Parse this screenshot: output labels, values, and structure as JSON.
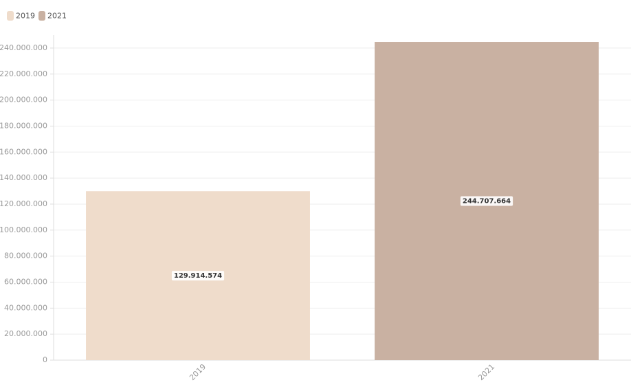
{
  "chart_data": {
    "type": "bar",
    "categories": [
      "2019",
      "2021"
    ],
    "series": [
      {
        "name": "2019",
        "color": "#efdccb",
        "values": [
          129914574,
          null
        ],
        "value_labels": [
          "129.914.574",
          null
        ]
      },
      {
        "name": "2021",
        "color": "#c9b1a2",
        "values": [
          null,
          244707664
        ],
        "value_labels": [
          null,
          "244.707.664"
        ]
      }
    ],
    "ylim": [
      0,
      250000000
    ],
    "yticks": [
      0,
      {
        "value": 20000000,
        "label": "20.000.000"
      },
      {
        "value": 40000000,
        "label": "40.000.000"
      },
      {
        "value": 60000000,
        "label": "60.000.000"
      },
      {
        "value": 80000000,
        "label": "80.000.000"
      },
      {
        "value": 100000000,
        "label": "100.000.000"
      },
      {
        "value": 120000000,
        "label": "120.000.000"
      },
      {
        "value": 140000000,
        "label": "140.000.000"
      },
      {
        "value": 160000000,
        "label": "160.000.000"
      },
      {
        "value": 180000000,
        "label": "180.000.000"
      },
      {
        "value": 200000000,
        "label": "200.000.000"
      },
      {
        "value": 220000000,
        "label": "220.000.000"
      },
      {
        "value": 240000000,
        "label": "240.000.000"
      }
    ],
    "grid": true,
    "legend": "top-left"
  }
}
